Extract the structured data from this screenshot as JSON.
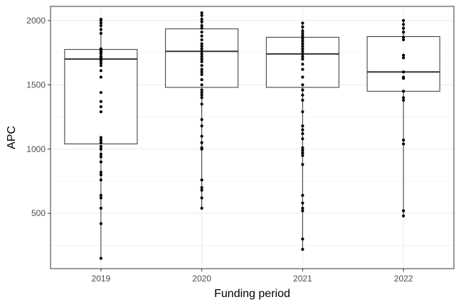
{
  "chart_data": {
    "type": "boxplot",
    "title": "",
    "xlabel": "Funding period",
    "ylabel": "APC",
    "categories": [
      "2019",
      "2020",
      "2021",
      "2022"
    ],
    "ylim": [
      70,
      2110
    ],
    "yticks": [
      500,
      1000,
      1500,
      2000
    ],
    "grid": true,
    "legend": "none",
    "boxes": [
      {
        "category": "2019",
        "min": 150,
        "q1": 1040,
        "median": 1700,
        "q3": 1775,
        "max": 2010
      },
      {
        "category": "2020",
        "min": 540,
        "q1": 1480,
        "median": 1760,
        "q3": 1935,
        "max": 2060
      },
      {
        "category": "2021",
        "min": 220,
        "q1": 1480,
        "median": 1740,
        "q3": 1870,
        "max": 1980
      },
      {
        "category": "2022",
        "min": 480,
        "q1": 1450,
        "median": 1600,
        "q3": 1875,
        "max": 2000
      }
    ],
    "points": {
      "2019": [
        150,
        420,
        540,
        620,
        640,
        760,
        800,
        820,
        900,
        940,
        960,
        1000,
        1020,
        1050,
        1070,
        1090,
        1290,
        1330,
        1370,
        1440,
        1560,
        1610,
        1650,
        1670,
        1690,
        1700,
        1710,
        1720,
        1740,
        1750,
        1760,
        1770,
        1780,
        1900,
        1930,
        1960,
        1980,
        2000,
        2010
      ],
      "2020": [
        540,
        620,
        680,
        700,
        760,
        1000,
        1010,
        1050,
        1100,
        1180,
        1230,
        1350,
        1400,
        1420,
        1440,
        1460,
        1500,
        1540,
        1580,
        1600,
        1620,
        1650,
        1680,
        1700,
        1720,
        1740,
        1760,
        1780,
        1800,
        1820,
        1850,
        1880,
        1910,
        1940,
        1960,
        1990,
        2010,
        2040,
        2060
      ],
      "2021": [
        220,
        300,
        520,
        540,
        580,
        640,
        880,
        950,
        970,
        990,
        1010,
        1080,
        1120,
        1150,
        1180,
        1290,
        1380,
        1420,
        1460,
        1500,
        1560,
        1620,
        1660,
        1700,
        1720,
        1740,
        1760,
        1780,
        1800,
        1820,
        1840,
        1860,
        1880,
        1900,
        1920,
        1950,
        1980
      ],
      "2022": [
        480,
        520,
        1040,
        1070,
        1380,
        1400,
        1450,
        1550,
        1560,
        1600,
        1710,
        1730,
        1850,
        1870,
        1910,
        1940,
        1970,
        2000
      ]
    },
    "colors": {
      "box_stroke": "#333333",
      "points": "#000000",
      "grid": "#ebebeb",
      "panel_border": "#333333"
    }
  }
}
